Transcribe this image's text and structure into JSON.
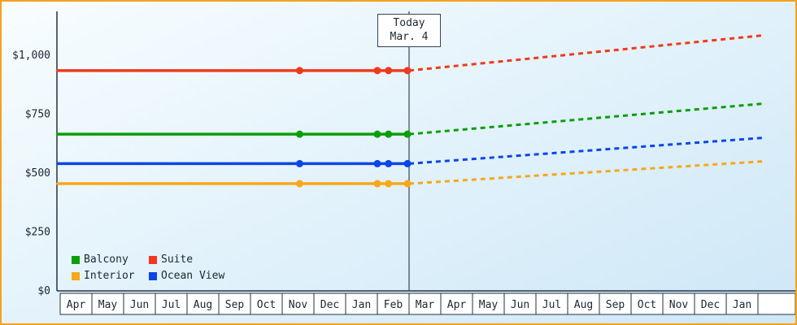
{
  "frame": {
    "border_color": "#f7a11d",
    "bg_gradient_top": "#f8fdff",
    "bg_gradient_bottom": "#cde7f7",
    "axis_color": "#26303f",
    "text_color": "#1d2633",
    "today_line_color": "#3a4454",
    "month_cell_fill": "#ffffff"
  },
  "legend": {
    "items": [
      "Balcony",
      "Suite",
      "Interior",
      "Ocean View"
    ]
  },
  "chart_data": {
    "type": "line",
    "x_tick_labels": [
      "Apr",
      "May",
      "Jun",
      "Jul",
      "Aug",
      "Sep",
      "Oct",
      "Nov",
      "Dec",
      "Jan",
      "Feb",
      "Mar",
      "Apr",
      "May",
      "Jun",
      "Jul",
      "Aug",
      "Sep",
      "Oct",
      "Nov",
      "Dec",
      "Jan"
    ],
    "y_tick_values": [
      0,
      250,
      500,
      750,
      1000
    ],
    "y_tick_labels": [
      "$0",
      "$250",
      "$500",
      "$750",
      "$1,000"
    ],
    "ylim": [
      0,
      1185
    ],
    "grid": false,
    "legend_position": "bottom-left",
    "annotations": {
      "today_line1": "Today",
      "today_line2": "Mar. 4",
      "month_index": 11
    },
    "series": [
      {
        "name": "Suite",
        "color": "#f0391c",
        "current_price": 935,
        "forecast_price": 1085,
        "history_dot_months": [
          7.55,
          10.0,
          10.35,
          10.95
        ]
      },
      {
        "name": "Balcony",
        "color": "#0a9e0a",
        "current_price": 665,
        "forecast_price": 795,
        "history_dot_months": [
          7.55,
          10.0,
          10.35,
          10.95
        ]
      },
      {
        "name": "Ocean View",
        "color": "#0b46e9",
        "current_price": 540,
        "forecast_price": 650,
        "history_dot_months": [
          7.55,
          10.0,
          10.35,
          10.95
        ]
      },
      {
        "name": "Interior",
        "color": "#f7a719",
        "current_price": 455,
        "forecast_price": 550,
        "history_dot_months": [
          7.55,
          10.0,
          10.35,
          10.95
        ]
      }
    ]
  }
}
